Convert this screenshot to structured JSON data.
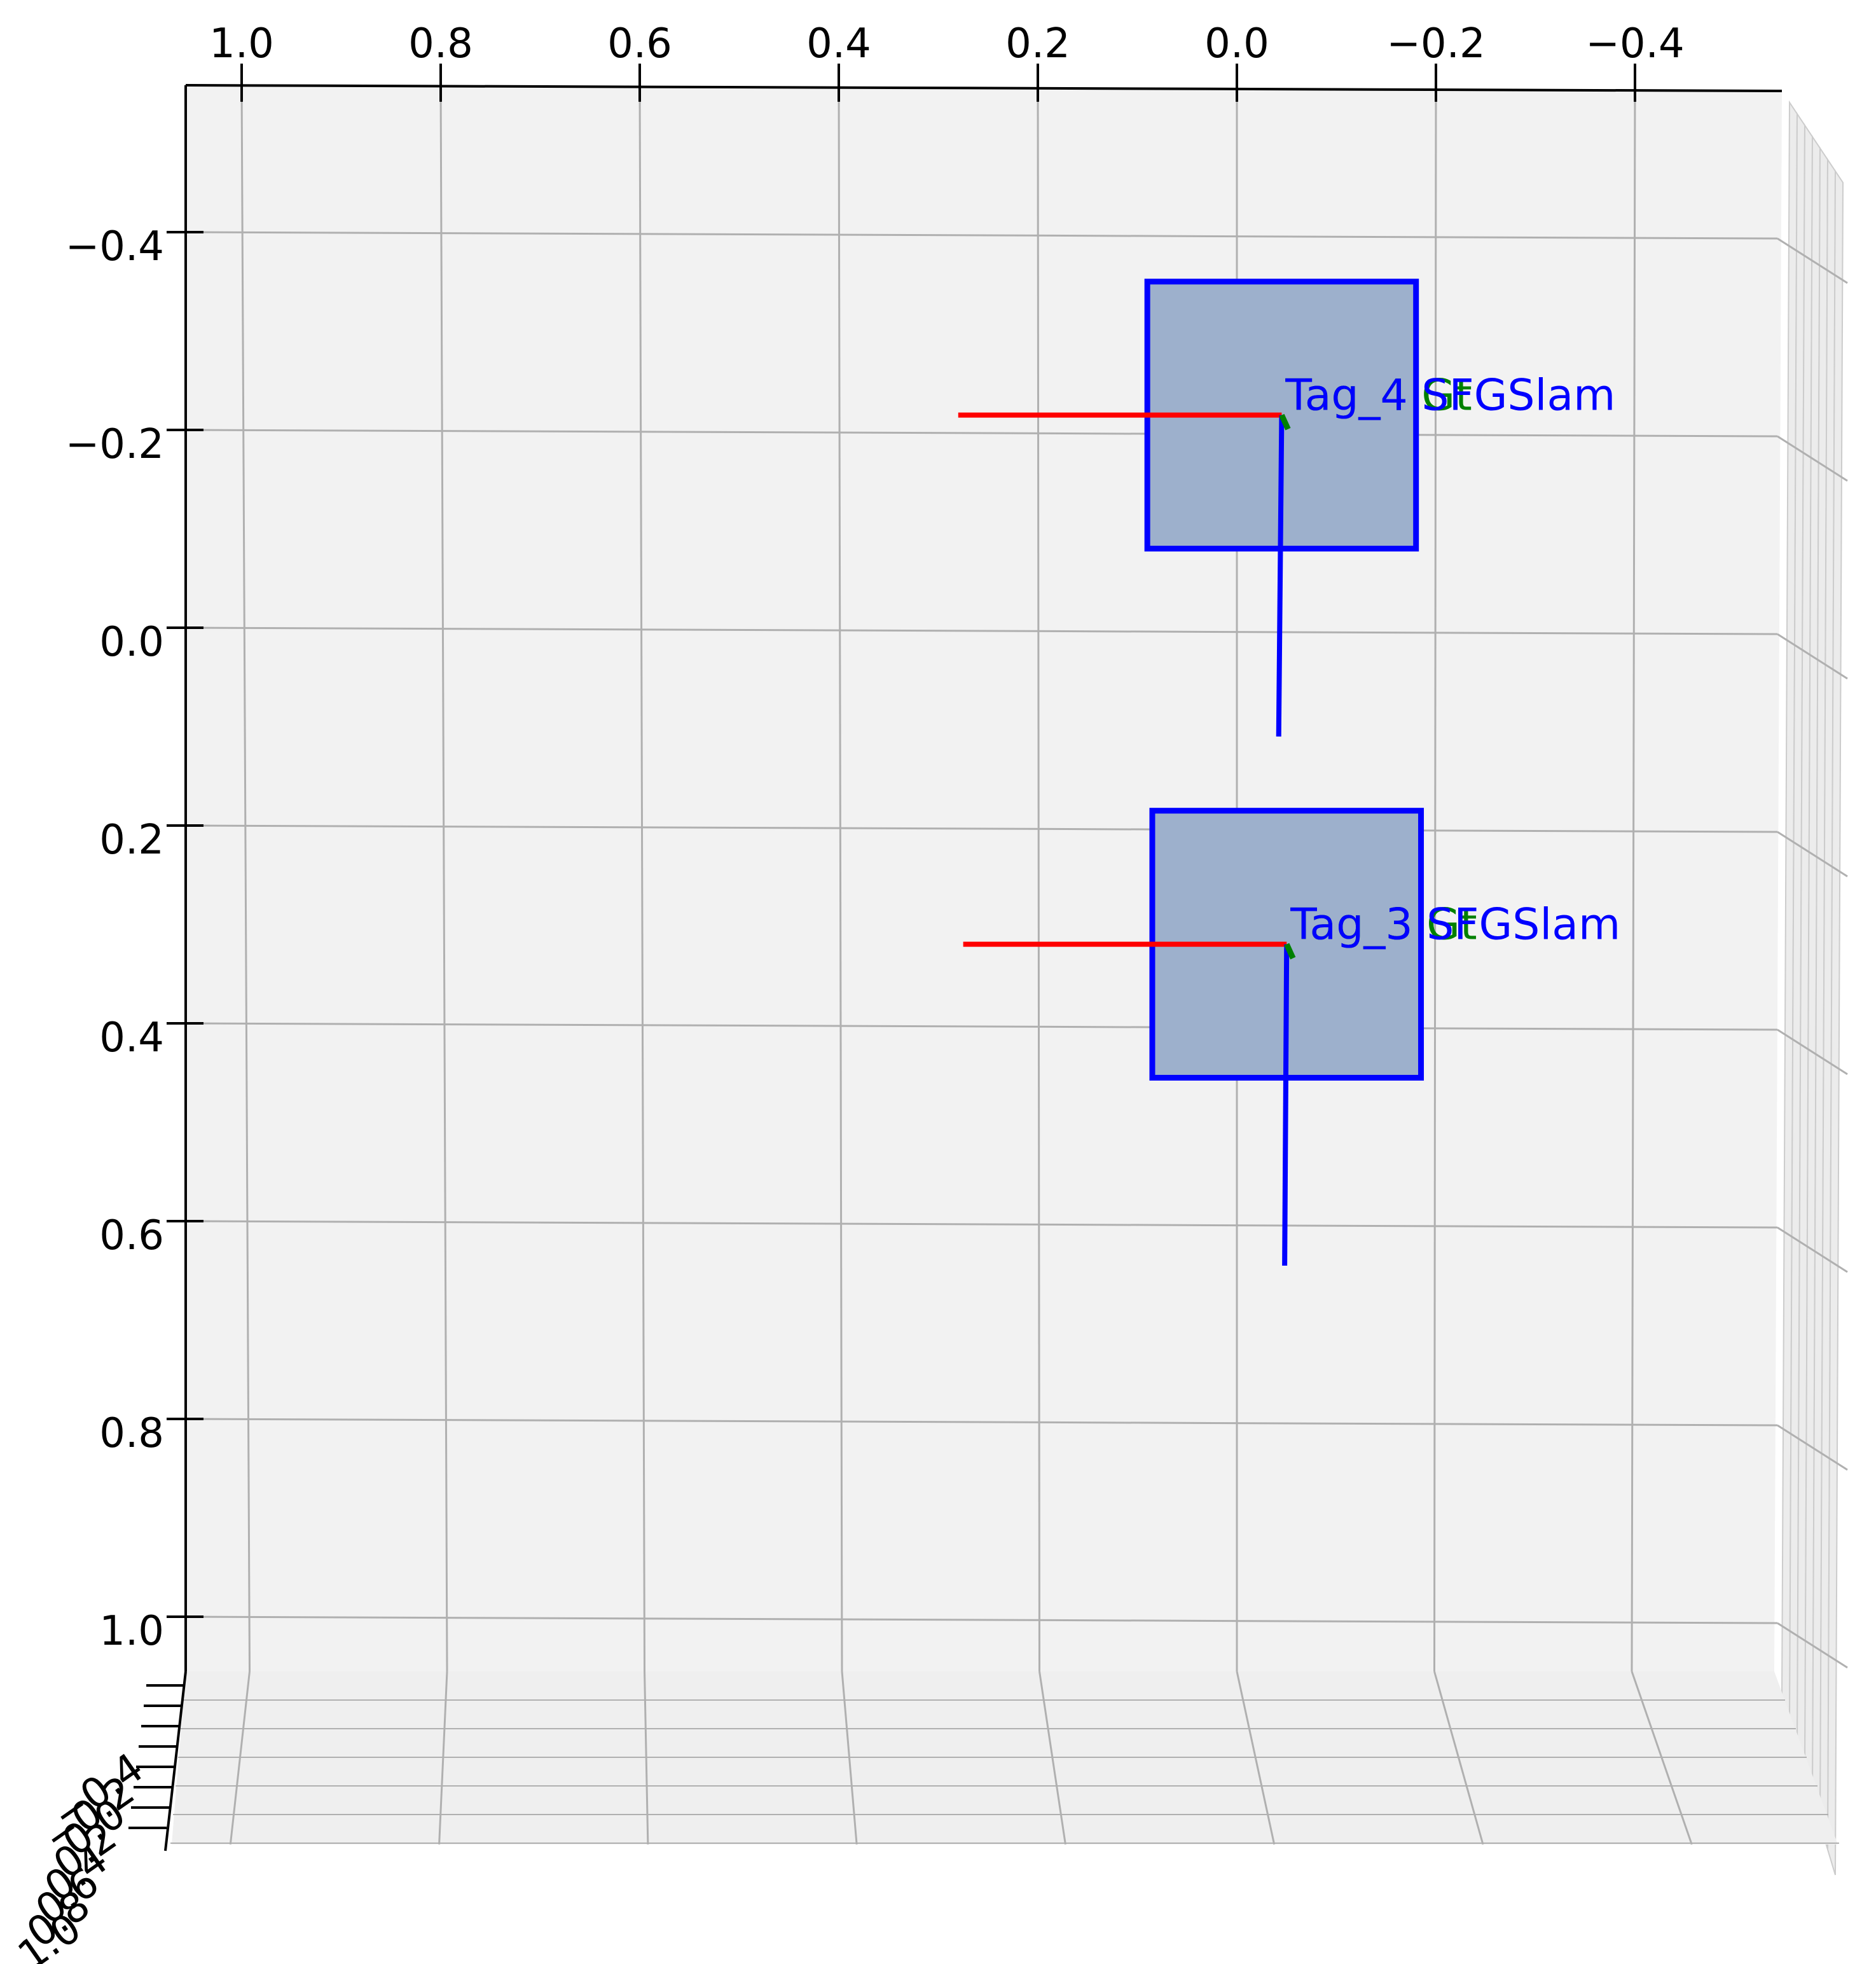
{
  "chart_data": {
    "type": "scatter",
    "projection": "3d",
    "view": "top-down",
    "grid": true,
    "pane_color": "#f2f2f2",
    "grid_color": "#b0b0b0",
    "x_axis": {
      "range": [
        1.05,
        -0.45
      ],
      "ticks": [
        1.0,
        0.8,
        0.6,
        0.4,
        0.2,
        0.0,
        -0.2,
        -0.4
      ],
      "tick_labels": [
        "1.0",
        "0.8",
        "0.6",
        "0.4",
        "0.2",
        "0.0",
        "−0.2",
        "−0.4"
      ],
      "placement": "top"
    },
    "y_axis": {
      "range": [
        -0.55,
        1.05
      ],
      "ticks": [
        -0.4,
        -0.2,
        0.0,
        0.2,
        0.4,
        0.6,
        0.8,
        1.0
      ],
      "tick_labels": [
        "−0.4",
        "−0.2",
        "0.0",
        "0.2",
        "0.4",
        "0.6",
        "0.8",
        "1.0"
      ],
      "placement": "left"
    },
    "z_axis": {
      "ticks": [
        -0.4,
        -0.2,
        0.0,
        0.2,
        0.4,
        0.6,
        0.8,
        1.0
      ],
      "tick_labels": [
        "−0.4",
        "−0.2",
        "0.0",
        "0.2",
        "0.4",
        "0.6",
        "0.8",
        "1.0"
      ],
      "placement": "bottom-left, foreshortened"
    },
    "tags": [
      {
        "label": "Tag_4 SFGSlam",
        "green_label": "Tag_4 Gt",
        "origin": [
          -0.045,
          -0.215
        ],
        "square": {
          "x": [
            0.09,
            -0.18
          ],
          "y": [
            -0.35,
            -0.08
          ]
        },
        "axis_x_end": [
          0.28,
          -0.215
        ],
        "axis_y_end": [
          -0.042,
          0.11
        ],
        "square_fill": "#9db0cc",
        "square_edge": "#0000ff"
      },
      {
        "label": "Tag_3 SFGSlam",
        "green_label": "Tag_3 Gt",
        "origin": [
          -0.05,
          0.32
        ],
        "square": {
          "x": [
            0.085,
            -0.185
          ],
          "y": [
            0.185,
            0.455
          ]
        },
        "axis_x_end": [
          0.275,
          0.32
        ],
        "axis_y_end": [
          -0.048,
          0.645
        ],
        "square_fill": "#9db0cc",
        "square_edge": "#0000ff"
      }
    ],
    "colors": {
      "x_axis_line": "#ff0000",
      "z_axis_line": "#0000ff",
      "gt_axis": "#008000",
      "label_blue": "#0000ff",
      "label_green": "#008000"
    }
  }
}
